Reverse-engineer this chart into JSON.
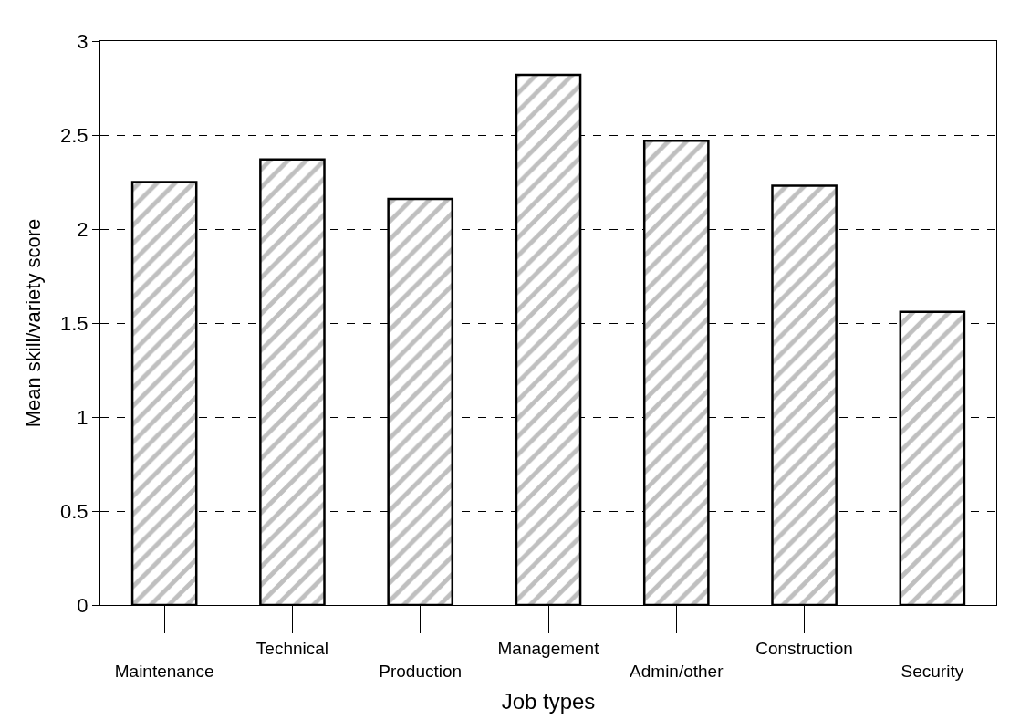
{
  "chart_data": {
    "type": "bar",
    "xlabel": "Job types",
    "ylabel": "Mean skill/variety score",
    "categories": [
      "Maintenance",
      "Technical",
      "Production",
      "Management",
      "Admin/other",
      "Construction",
      "Security"
    ],
    "values": [
      2.25,
      2.37,
      2.16,
      2.82,
      2.47,
      2.23,
      1.56
    ],
    "ylim": [
      0,
      3
    ],
    "yticks": [
      0,
      0.5,
      1,
      1.5,
      2,
      2.5,
      3
    ],
    "grid": "y"
  }
}
